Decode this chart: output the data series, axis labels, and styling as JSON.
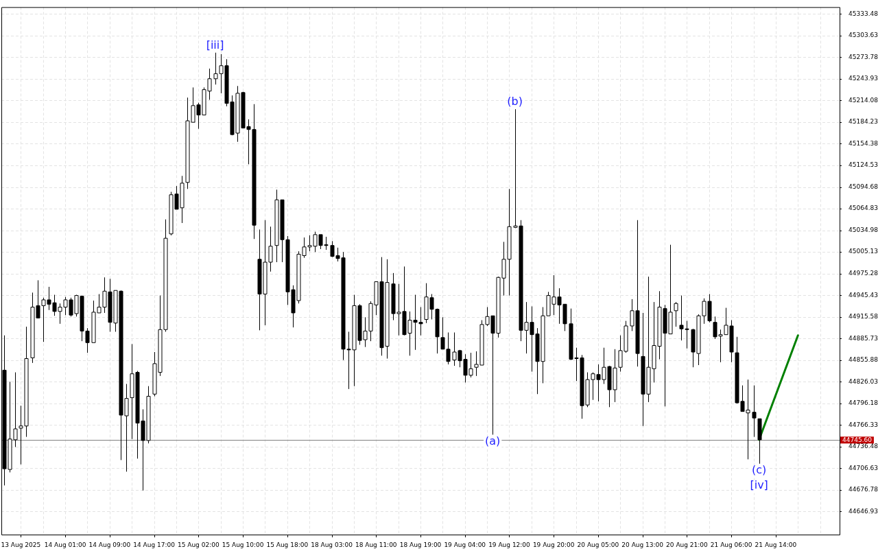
{
  "chart_data": {
    "type": "candlestick",
    "categories": [
      null,
      null,
      null,
      "13 Aug 2025",
      null,
      null,
      null,
      null,
      null,
      null,
      null,
      "14 Aug 01:00",
      null,
      null,
      null,
      null,
      null,
      null,
      null,
      "14 Aug 09:00",
      null,
      null,
      null,
      null,
      null,
      null,
      null,
      "14 Aug 17:00",
      null,
      null,
      null,
      null,
      null,
      null,
      null,
      "15 Aug 02:00",
      null,
      null,
      null,
      null,
      null,
      null,
      null,
      "15 Aug 10:00",
      null,
      null,
      null,
      null,
      null,
      null,
      null,
      "15 Aug 18:00",
      null,
      null,
      null,
      null,
      null,
      null,
      null,
      "18 Aug 03:00",
      null,
      null,
      null,
      null,
      null,
      null,
      null,
      "18 Aug 11:00",
      null,
      null,
      null,
      null,
      null,
      null,
      null,
      "18 Aug 19:00",
      null,
      null,
      null,
      null,
      null,
      null,
      null,
      "19 Aug 04:00",
      null,
      null,
      null,
      null,
      null,
      null,
      null,
      "19 Aug 12:00",
      null,
      null,
      null,
      null,
      null,
      null,
      null,
      "19 Aug 20:00",
      null,
      null,
      null,
      null,
      null,
      null,
      null,
      "20 Aug 05:00",
      null,
      null,
      null,
      null,
      null,
      null,
      null,
      "20 Aug 13:00",
      null,
      null,
      null,
      null,
      null,
      null,
      null,
      "20 Aug 21:00",
      null,
      null,
      null,
      null,
      null,
      null,
      null,
      "21 Aug 06:00",
      null,
      null,
      null,
      null,
      null,
      null,
      null,
      "21 Aug 14:00",
      null,
      null,
      null,
      null,
      null,
      null,
      null,
      null,
      null,
      null,
      null
    ],
    "ohlc": [
      [
        44842,
        44890,
        44683,
        44706
      ],
      [
        44705,
        44826,
        44701,
        44747
      ],
      [
        44746,
        44839,
        44736,
        44761
      ],
      [
        44762,
        44793,
        44712,
        44765
      ],
      [
        44765,
        44902,
        44750,
        44858
      ],
      [
        44859,
        44949,
        44852,
        44929
      ],
      [
        44931,
        44966,
        44914,
        44914
      ],
      [
        44931,
        44942,
        44881,
        44939
      ],
      [
        44939,
        44957,
        44925,
        44933
      ],
      [
        44935,
        44946,
        44917,
        44923
      ],
      [
        44923,
        44934,
        44906,
        44929
      ],
      [
        44929,
        44943,
        44918,
        44939
      ],
      [
        44939,
        44942,
        44916,
        44918
      ],
      [
        44920,
        44946,
        44916,
        44945
      ],
      [
        44944,
        44945,
        44882,
        44896
      ],
      [
        44896,
        44900,
        44866,
        44880
      ],
      [
        44880,
        44938,
        44880,
        44922
      ],
      [
        44921,
        44947,
        44921,
        44929
      ],
      [
        44929,
        44970,
        44921,
        44951
      ],
      [
        44950,
        44968,
        44895,
        44908
      ],
      [
        44907,
        44952,
        44895,
        44952
      ],
      [
        44951,
        44952,
        44718,
        44780
      ],
      [
        44779,
        44823,
        44702,
        44803
      ],
      [
        44804,
        44878,
        44747,
        44837
      ],
      [
        44839,
        44841,
        44720,
        44769
      ],
      [
        44772,
        44788,
        44676,
        44745
      ],
      [
        44745,
        44820,
        44741,
        44806
      ],
      [
        44809,
        44867,
        44806,
        44851
      ],
      [
        44839,
        44945,
        44834,
        44898
      ],
      [
        44898,
        45050,
        44895,
        45024
      ],
      [
        45030,
        45088,
        45028,
        45084
      ],
      [
        45085,
        45096,
        45064,
        45064
      ],
      [
        45066,
        45110,
        45045,
        45100
      ],
      [
        45101,
        45218,
        45092,
        45186
      ],
      [
        45184,
        45232,
        45184,
        45207
      ],
      [
        45208,
        45211,
        45175,
        45194
      ],
      [
        45194,
        45232,
        45194,
        45229
      ],
      [
        45227,
        45258,
        45215,
        45244
      ],
      [
        45244,
        45280,
        45236,
        45251
      ],
      [
        45251,
        45278,
        45224,
        45262
      ],
      [
        45262,
        45271,
        45206,
        45210
      ],
      [
        45212,
        45221,
        45166,
        45167
      ],
      [
        45169,
        45234,
        45157,
        45224
      ],
      [
        45225,
        45226,
        45176,
        45176
      ],
      [
        45178,
        45188,
        45126,
        45174
      ],
      [
        45174,
        45209,
        45023,
        45042
      ],
      [
        44995,
        45036,
        44897,
        44947
      ],
      [
        44947,
        45049,
        44904,
        44991
      ],
      [
        44991,
        45040,
        44978,
        45013
      ],
      [
        45014,
        45091,
        44991,
        45077
      ],
      [
        45077,
        45077,
        44991,
        45022
      ],
      [
        45022,
        45027,
        44932,
        44950
      ],
      [
        44953,
        44959,
        44901,
        44921
      ],
      [
        44938,
        45006,
        44934,
        45002
      ],
      [
        45000,
        45025,
        44997,
        45012
      ],
      [
        45012,
        45028,
        45006,
        45014
      ],
      [
        45013,
        45033,
        45005,
        45029
      ],
      [
        45029,
        45029,
        45009,
        45014
      ],
      [
        45015,
        45026,
        45008,
        45014
      ],
      [
        45014,
        45020,
        44998,
        44999
      ],
      [
        45000,
        45011,
        44992,
        44996
      ],
      [
        44997,
        45005,
        44856,
        44871
      ],
      [
        44871,
        44895,
        44816,
        44870
      ],
      [
        44870,
        44946,
        44820,
        44931
      ],
      [
        44931,
        44933,
        44877,
        44883
      ],
      [
        44884,
        44915,
        44874,
        44896
      ],
      [
        44896,
        44937,
        44882,
        44934
      ],
      [
        44932,
        44964,
        44918,
        44964
      ],
      [
        44964,
        44998,
        44862,
        44873
      ],
      [
        44875,
        44995,
        44858,
        44963
      ],
      [
        44961,
        44976,
        44911,
        44920
      ],
      [
        44920,
        44961,
        44890,
        44922
      ],
      [
        44923,
        44985,
        44890,
        44891
      ],
      [
        44893,
        44923,
        44862,
        44911
      ],
      [
        44911,
        44946,
        44870,
        44908
      ],
      [
        44908,
        44929,
        44890,
        44906
      ],
      [
        44912,
        44962,
        44907,
        44943
      ],
      [
        44942,
        44947,
        44912,
        44926
      ],
      [
        44926,
        44927,
        44865,
        44888
      ],
      [
        44887,
        44915,
        44871,
        44871
      ],
      [
        44871,
        44894,
        44850,
        44854
      ],
      [
        44856,
        44894,
        44848,
        44867
      ],
      [
        44869,
        44870,
        44846,
        44855
      ],
      [
        44857,
        44864,
        44825,
        44835
      ],
      [
        44835,
        44866,
        44832,
        44844
      ],
      [
        44846,
        44868,
        44834,
        44850
      ],
      [
        44849,
        44911,
        44849,
        44905
      ],
      [
        44905,
        44929,
        44903,
        44916
      ],
      [
        44917,
        44917,
        44753,
        44893
      ],
      [
        44893,
        44971,
        44887,
        44970
      ],
      [
        44969,
        45019,
        44945,
        44995
      ],
      [
        44995,
        45092,
        44945,
        45040
      ],
      [
        45039,
        45202,
        45038,
        45041
      ],
      [
        45041,
        45049,
        44882,
        44897
      ],
      [
        44897,
        44936,
        44865,
        44908
      ],
      [
        44908,
        44930,
        44840,
        44891
      ],
      [
        44892,
        44900,
        44809,
        44854
      ],
      [
        44854,
        44929,
        44824,
        44917
      ],
      [
        44917,
        44950,
        44917,
        44945
      ],
      [
        44933,
        44973,
        44918,
        44943
      ],
      [
        44943,
        44955,
        44906,
        44932
      ],
      [
        44933,
        44933,
        44896,
        44906
      ],
      [
        44906,
        44927,
        44856,
        44857
      ],
      [
        44859,
        44873,
        44827,
        44858
      ],
      [
        44859,
        44863,
        44775,
        44793
      ],
      [
        44794,
        44839,
        44791,
        44829
      ],
      [
        44829,
        44839,
        44801,
        44837
      ],
      [
        44836,
        44850,
        44799,
        44829
      ],
      [
        44829,
        44873,
        44823,
        44846
      ],
      [
        44847,
        44848,
        44791,
        44815
      ],
      [
        44815,
        44871,
        44798,
        44845
      ],
      [
        44846,
        44890,
        44840,
        44869
      ],
      [
        44868,
        44910,
        44866,
        44903
      ],
      [
        44903,
        44940,
        44896,
        44924
      ],
      [
        44924,
        45049,
        44847,
        44865
      ],
      [
        44861,
        44921,
        44765,
        44809
      ],
      [
        44809,
        44971,
        44798,
        44846
      ],
      [
        44844,
        44936,
        44825,
        44876
      ],
      [
        44875,
        44951,
        44857,
        44929
      ],
      [
        44927,
        44932,
        44792,
        44893
      ],
      [
        44892,
        45015,
        44892,
        44922
      ],
      [
        44924,
        44936,
        44902,
        44934
      ],
      [
        44904,
        44945,
        44883,
        44899
      ],
      [
        44899,
        44910,
        44872,
        44898
      ],
      [
        44898,
        44899,
        44846,
        44867
      ],
      [
        44865,
        44919,
        44849,
        44917
      ],
      [
        44917,
        44941,
        44906,
        44937
      ],
      [
        44937,
        44947,
        44908,
        44910
      ],
      [
        44908,
        44916,
        44885,
        44888
      ],
      [
        44889,
        44898,
        44853,
        44891
      ],
      [
        44891,
        44928,
        44891,
        44904
      ],
      [
        44903,
        44911,
        44853,
        44867
      ],
      [
        44866,
        44888,
        44796,
        44797
      ],
      [
        44799,
        44821,
        44785,
        44785
      ],
      [
        44783,
        44829,
        44719,
        44787
      ],
      [
        44784,
        44821,
        44750,
        44776
      ],
      [
        44775,
        44775,
        44713,
        44746
      ],
      null,
      null,
      null,
      null,
      null,
      null,
      null,
      null,
      null,
      null,
      null,
      null,
      null,
      null
    ],
    "series": [
      {
        "type": "line",
        "color": "#008000",
        "values": [
          null,
          null,
          null,
          null,
          null,
          null,
          null,
          null,
          null,
          null,
          null,
          null,
          null,
          null,
          null,
          null,
          null,
          null,
          null,
          null,
          null,
          null,
          null,
          null,
          null,
          null,
          null,
          null,
          null,
          null,
          null,
          null,
          null,
          null,
          null,
          null,
          null,
          null,
          null,
          null,
          null,
          null,
          null,
          null,
          null,
          null,
          null,
          null,
          null,
          null,
          null,
          null,
          null,
          null,
          null,
          null,
          null,
          null,
          null,
          null,
          null,
          null,
          null,
          null,
          null,
          null,
          null,
          null,
          null,
          null,
          null,
          null,
          null,
          null,
          null,
          null,
          null,
          null,
          null,
          null,
          null,
          null,
          null,
          null,
          null,
          null,
          null,
          null,
          null,
          null,
          null,
          null,
          null,
          null,
          null,
          null,
          null,
          null,
          null,
          null,
          null,
          null,
          null,
          null,
          null,
          null,
          null,
          null,
          null,
          null,
          null,
          null,
          null,
          null,
          null,
          null,
          null,
          null,
          null,
          null,
          null,
          null,
          null,
          null,
          null,
          null,
          null,
          null,
          null,
          null,
          null,
          null,
          null,
          null,
          null,
          null,
          44746,
          null,
          null,
          null,
          null,
          null,
          null,
          44890,
          null,
          null,
          null,
          null,
          null,
          null,
          null
        ]
      }
    ],
    "ylim": [
      44615.2,
      45342.8
    ],
    "yticks": [
      44646.93,
      44676.78,
      44706.63,
      44736.48,
      44766.33,
      44796.18,
      44826.03,
      44855.88,
      44885.73,
      44915.58,
      44945.43,
      44975.28,
      45005.13,
      45034.98,
      45064.83,
      45094.68,
      45124.53,
      45154.38,
      45184.23,
      45214.08,
      45243.93,
      45273.78,
      45303.63,
      45333.48
    ],
    "grid": true,
    "legend": false,
    "ref_lines": [
      {
        "axis": "y",
        "value": 44745.6,
        "label": "44745.60",
        "color": "#808080"
      }
    ],
    "annotations": [
      {
        "text": "[iii]",
        "y": 45280
      },
      {
        "text": "(b)",
        "y": 45202
      },
      {
        "text": "(a)",
        "y": 44753
      },
      {
        "text": "(c)",
        "y": 44713
      },
      {
        "text": "[iv]",
        "y": 44713
      }
    ]
  }
}
